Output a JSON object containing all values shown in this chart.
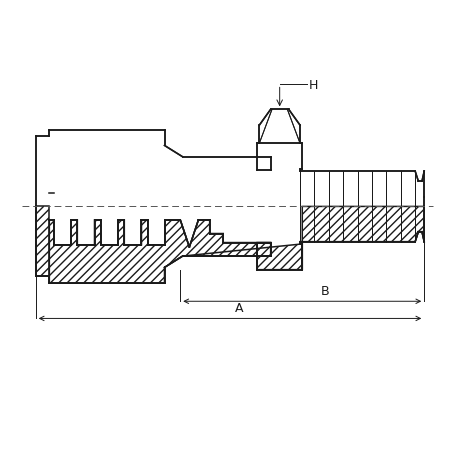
{
  "bg_color": "#ffffff",
  "line_color": "#1a1a1a",
  "fig_width": 4.6,
  "fig_height": 4.6,
  "dpi": 100,
  "label_A": "A",
  "label_B": "B",
  "label_H": "H"
}
